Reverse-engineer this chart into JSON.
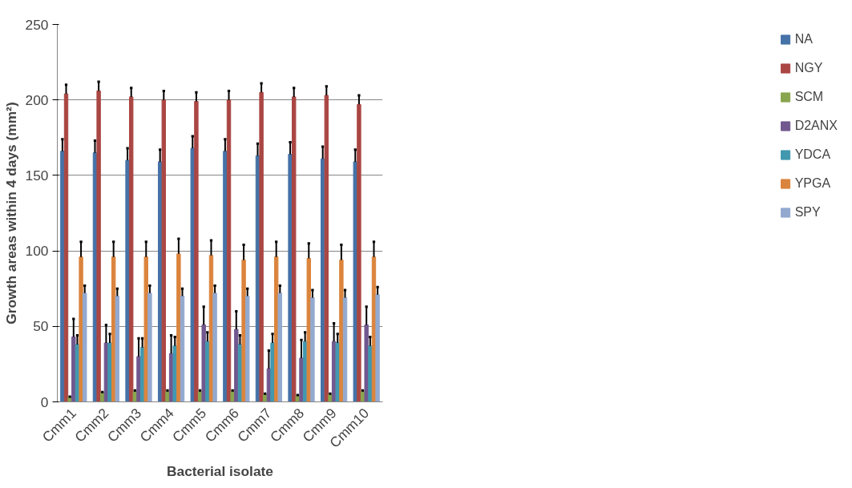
{
  "chart_data": {
    "type": "bar",
    "xlabel": "Bacterial isolate",
    "ylabel": "Growth areas within 4 days (mm²)",
    "categories": [
      "Cmm1",
      "Cmm2",
      "Cmm3",
      "Cmm4",
      "Cmm5",
      "Cmm6",
      "Cmm7",
      "Cmm8",
      "Cmm9",
      "Cmm10"
    ],
    "ylim": [
      0,
      250
    ],
    "yticks": [
      0,
      50,
      100,
      150,
      200,
      250
    ],
    "grid": "y",
    "legend": "right",
    "series": [
      {
        "name": "NA",
        "color": "#4572a7",
        "values": [
          166,
          165,
          160,
          159,
          168,
          166,
          163,
          164,
          161,
          159
        ],
        "errors": [
          8,
          8,
          8,
          8,
          8,
          8,
          8,
          8,
          8,
          8
        ]
      },
      {
        "name": "NGY",
        "color": "#aa4643",
        "values": [
          204,
          206,
          202,
          200,
          199,
          200,
          205,
          202,
          203,
          197
        ],
        "errors": [
          6,
          6,
          6,
          6,
          6,
          6,
          6,
          6,
          6,
          6
        ]
      },
      {
        "name": "SCM",
        "color": "#89a54e",
        "values": [
          3,
          6,
          7,
          7,
          7,
          7,
          5,
          4,
          5,
          7
        ],
        "errors": [
          0.5,
          0.5,
          0.5,
          0.5,
          0.5,
          0.5,
          0.5,
          0.5,
          0.5,
          0.5
        ]
      },
      {
        "name": "D2ANX",
        "color": "#71588f",
        "values": [
          43,
          39,
          30,
          32,
          51,
          48,
          22,
          29,
          40,
          51
        ],
        "errors": [
          12,
          12,
          12,
          12,
          12,
          12,
          12,
          12,
          12,
          12
        ]
      },
      {
        "name": "YDCA",
        "color": "#4198af",
        "values": [
          38,
          39,
          36,
          37,
          40,
          38,
          39,
          40,
          39,
          37
        ],
        "errors": [
          6,
          6,
          6,
          6,
          6,
          6,
          6,
          6,
          6,
          6
        ]
      },
      {
        "name": "YPGA",
        "color": "#db843d",
        "values": [
          96,
          96,
          96,
          98,
          97,
          94,
          96,
          95,
          94,
          96
        ],
        "errors": [
          10,
          10,
          10,
          10,
          10,
          10,
          10,
          10,
          10,
          10
        ]
      },
      {
        "name": "SPY",
        "color": "#93a9cf",
        "values": [
          72,
          70,
          72,
          70,
          72,
          70,
          72,
          69,
          69,
          71
        ],
        "errors": [
          5,
          5,
          5,
          5,
          5,
          5,
          5,
          5,
          5,
          5
        ]
      }
    ]
  }
}
